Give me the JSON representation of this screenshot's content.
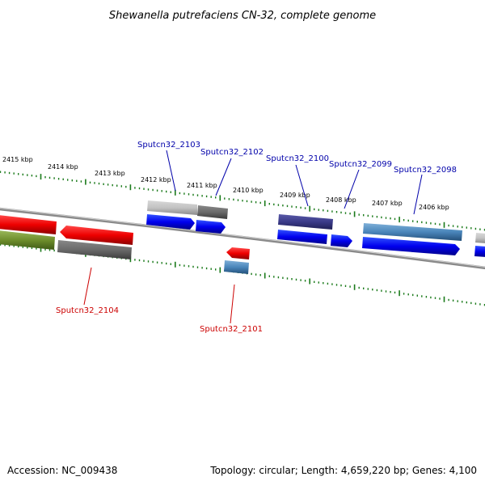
{
  "title": "Shewanella putrefaciens CN-32, complete genome",
  "footer": {
    "accession": "Accession: NC_009438",
    "summary": "Topology: circular; Length: 4,659,220 bp; Genes: 4,100"
  },
  "ticks": [
    "2415 kbp",
    "2414 kbp",
    "2413 kbp",
    "2412 kbp",
    "2411 kbp",
    "2410 kbp",
    "2409 kbp",
    "2408 kbp",
    "2407 kbp",
    "2406 kbp"
  ],
  "gene_labels": {
    "top": [
      "Sputcn32_2103",
      "Sputcn32_2102",
      "Sputcn32_2100",
      "Sputcn32_2099",
      "Sputcn32_2098"
    ],
    "bottom": [
      "Sputcn32_2104",
      "Sputcn32_2101"
    ]
  },
  "colors": {
    "forward_label": "#0000aa",
    "reverse_label": "#cc0000",
    "tick": "#1a7a1a",
    "backbone": "#8a8a8a"
  }
}
